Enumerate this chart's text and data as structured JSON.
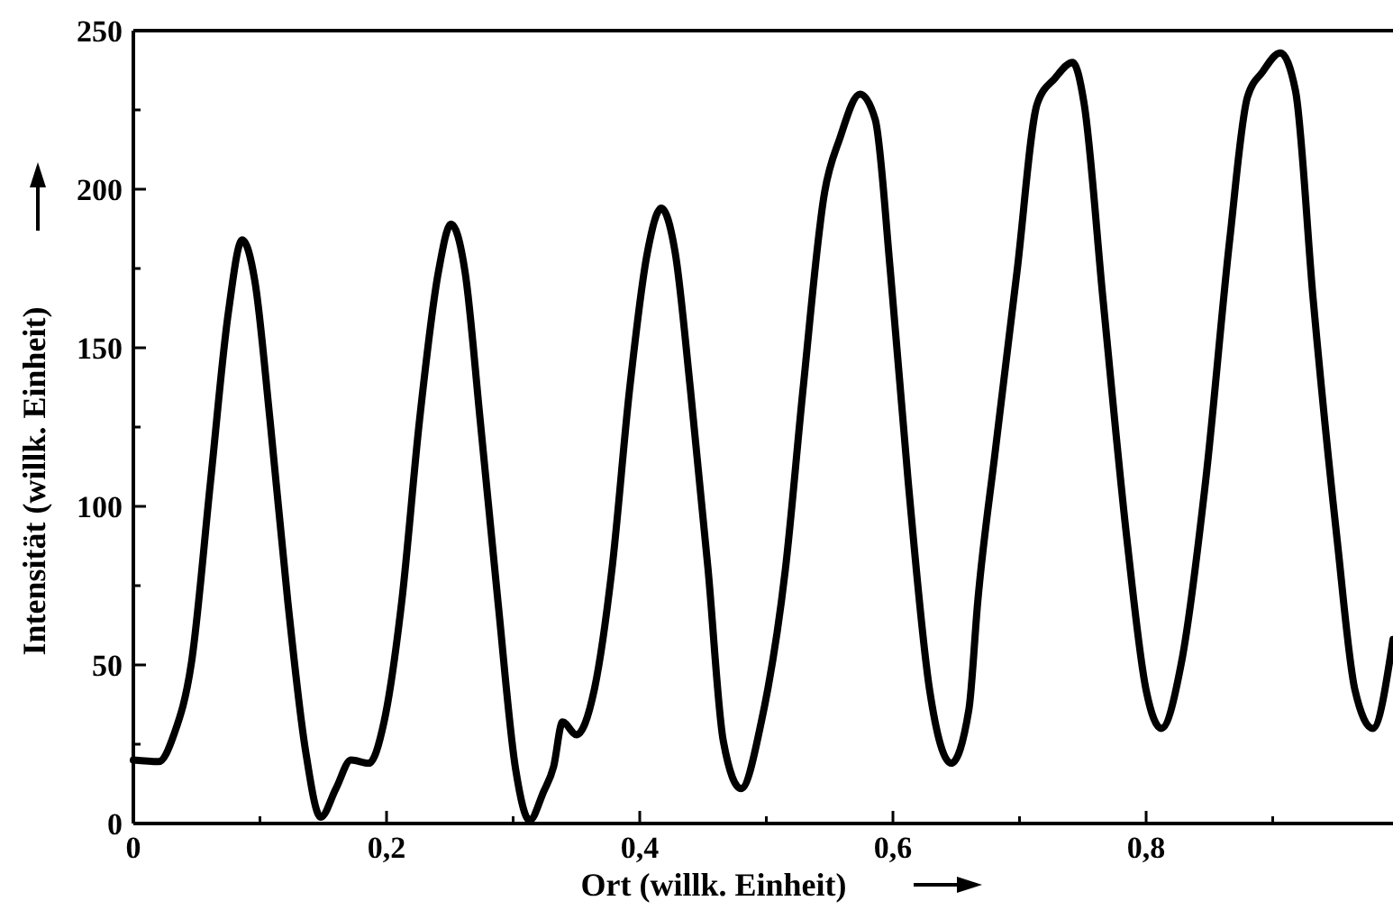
{
  "chart_data": {
    "type": "line",
    "xlabel": "Ort (willk. Einheit)",
    "ylabel": "Intensität (willk. Einheit)",
    "x": [
      0,
      0.02,
      0.032,
      0.046,
      0.061,
      0.075,
      0.086,
      0.096,
      0.108,
      0.122,
      0.136,
      0.148,
      0.16,
      0.172,
      0.186,
      0.198,
      0.212,
      0.226,
      0.241,
      0.251,
      0.262,
      0.274,
      0.288,
      0.302,
      0.313,
      0.324,
      0.332,
      0.339,
      0.35,
      0.364,
      0.378,
      0.392,
      0.406,
      0.417,
      0.428,
      0.44,
      0.454,
      0.466,
      0.48,
      0.496,
      0.515,
      0.529,
      0.546,
      0.558,
      0.574,
      0.586,
      0.598,
      0.612,
      0.629,
      0.646,
      0.66,
      0.667,
      0.681,
      0.698,
      0.714,
      0.728,
      0.742,
      0.751,
      0.766,
      0.785,
      0.8,
      0.812,
      0.828,
      0.847,
      0.866,
      0.88,
      0.892,
      0.906,
      0.918,
      0.932,
      0.951,
      0.965,
      0.979,
      0.995
    ],
    "series": [
      {
        "color": "#000000",
        "values": [
          20,
          19.5,
          28,
          51,
          108,
          161,
          184,
          171,
          127,
          70,
          23,
          2,
          11,
          20,
          19,
          32,
          70,
          127,
          174,
          189,
          174,
          127,
          70,
          17,
          1,
          10,
          18,
          32,
          28,
          42,
          80,
          137,
          180,
          194,
          180,
          137,
          80,
          26,
          11,
          32,
          80,
          137,
          199,
          216,
          230,
          222,
          174,
          108,
          42,
          19,
          36,
          70,
          118,
          174,
          227,
          235,
          240,
          227,
          165,
          89,
          42,
          30,
          51,
          108,
          184,
          229,
          237,
          243,
          231,
          165,
          89,
          42,
          30,
          58
        ]
      }
    ],
    "xlim": [
      0,
      0.995
    ],
    "ylim": [
      0,
      250
    ],
    "xticks": [
      0,
      {
        "value": 0.1,
        "label": null
      },
      {
        "value": 0.2,
        "label": "0,2"
      },
      {
        "value": 0.3,
        "label": null
      },
      {
        "value": 0.4,
        "label": "0,4"
      },
      {
        "value": 0.5,
        "label": null
      },
      {
        "value": 0.6,
        "label": "0,6"
      },
      {
        "value": 0.7,
        "label": null
      },
      {
        "value": 0.8,
        "label": "0,8"
      },
      {
        "value": 0.9,
        "label": null
      }
    ],
    "yticks": [
      0,
      {
        "value": 25,
        "label": null
      },
      50,
      {
        "value": 75,
        "label": null
      },
      100,
      {
        "value": 125,
        "label": null
      },
      150,
      {
        "value": 175,
        "label": null
      },
      200,
      {
        "value": 225,
        "label": null
      },
      250
    ],
    "grid": false,
    "marker": "none",
    "line_style": "solid"
  }
}
